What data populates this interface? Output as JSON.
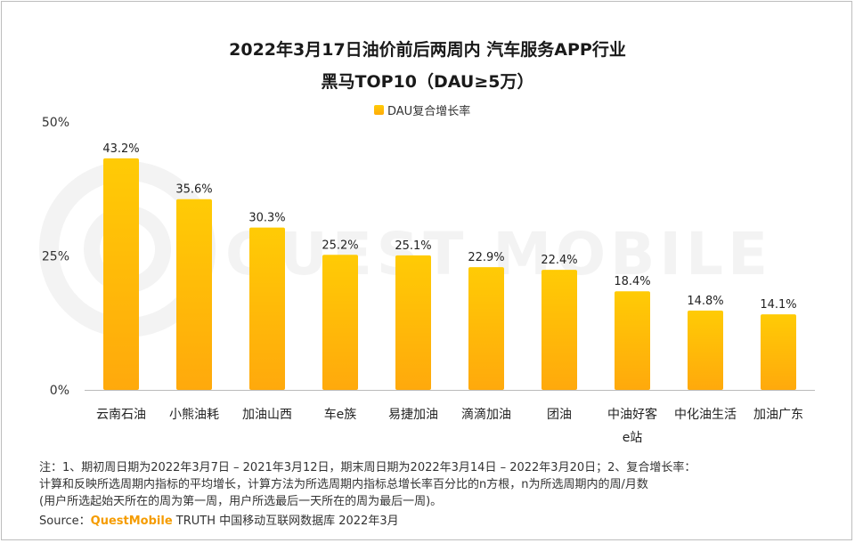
{
  "header": {
    "title_line1": "2022年3月17日油价前后两周内 汽车服务APP行业",
    "title_line2": "黑马TOP10（DAU≥5万）"
  },
  "legend": {
    "label": "DAU复合增长率"
  },
  "watermark": {
    "text": "QUEST MOBILE"
  },
  "chart_data": {
    "type": "bar",
    "categories": [
      "云南石油",
      "小熊油耗",
      "加油山西",
      "车e族",
      "易捷加油",
      "滴滴加油",
      "团油",
      "中油好客e站",
      "中化油生活",
      "加油广东"
    ],
    "category_lines": [
      [
        "云南石油"
      ],
      [
        "小熊油耗"
      ],
      [
        "加油山西"
      ],
      [
        "车e族"
      ],
      [
        "易捷加油"
      ],
      [
        "滴滴加油"
      ],
      [
        "团油"
      ],
      [
        "中油好客",
        "e站"
      ],
      [
        "中化油生活"
      ],
      [
        "加油广东"
      ]
    ],
    "series": [
      {
        "name": "DAU复合增长率",
        "values": [
          43.2,
          35.6,
          30.3,
          25.2,
          25.1,
          22.9,
          22.4,
          18.4,
          14.8,
          14.1
        ]
      }
    ],
    "value_labels": [
      "43.2%",
      "35.6%",
      "30.3%",
      "25.2%",
      "25.1%",
      "22.9%",
      "22.4%",
      "18.4%",
      "14.8%",
      "14.1%"
    ],
    "ylim": [
      0,
      50
    ],
    "yticks": [
      0,
      25,
      50
    ],
    "ytick_labels": [
      "0%",
      "25%",
      "50%"
    ],
    "legend_position": "top-center",
    "grid": false,
    "bar_color_top": "#ffcb05",
    "bar_color_bottom": "#ffa90c"
  },
  "notes": {
    "line1": "注：1、期初周日期为2022年3月7日 – 2021年3月12日，期末周日期为2022年3月14日 – 2022年3月20日；2、复合增长率：",
    "line2": "计算和反映所选周期内指标的平均增长，计算方法为所选周期内指标总增长率百分比的n方根，n为所选周期内的周/月数",
    "line3": "(用户所选起始天所在的周为第一周，用户所选最后一天所在的周为最后一周)。"
  },
  "source": {
    "prefix": "Source：",
    "brand": "QuestMobile",
    "suffix": " TRUTH 中国移动互联网数据库 2022年3月"
  }
}
